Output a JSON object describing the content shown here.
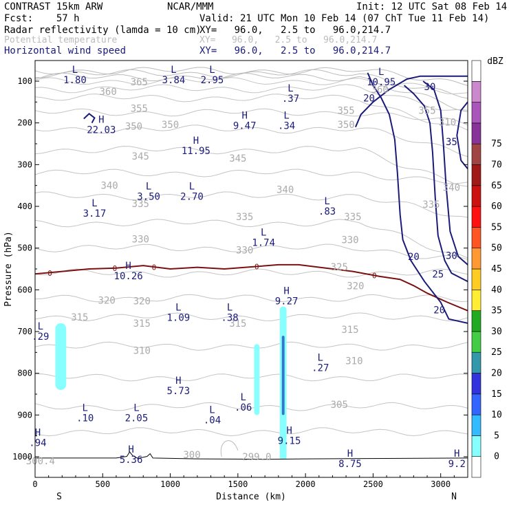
{
  "header": {
    "model": "CONTRAST 15km ARW",
    "org": "NCAR/MMM",
    "init": "Init: 12 UTC Sat 08 Feb 14",
    "fcst": "Fcst:    57 h",
    "valid": "Valid: 21 UTC Mon 10 Feb 14 (07 ChT Tue 11 Feb 14)",
    "fields": [
      {
        "name": "Radar reflectivity (lamda = 10 cm)",
        "xy": "XY=   96.0,   2.5 to   96.0,214.7",
        "color": "#000000"
      },
      {
        "name": "Potential temperature",
        "xy": "XY=   96.0,   2.5 to   96.0,214.7",
        "color": "#bbbbbb"
      },
      {
        "name": "Horizontal wind speed",
        "xy": "XY=   96.0,   2.5 to   96.0,214.7",
        "color": "#1a1a7a"
      }
    ]
  },
  "chart_data": {
    "type": "cross-section contour",
    "xlabel": "Distance (km)",
    "ylabel": "Pressure (hPa)",
    "xlim": [
      0,
      3200
    ],
    "ylim": [
      1050,
      55
    ],
    "xticks": [
      "0",
      "500",
      "1000",
      "1500",
      "2000",
      "2500",
      "3000"
    ],
    "yticks": [
      "100",
      "200",
      "300",
      "400",
      "500",
      "600",
      "700",
      "800",
      "900",
      "1000"
    ],
    "left_label": "S",
    "right_label": "N",
    "colorbar": {
      "title": "dBZ",
      "levels": [
        "0",
        "5",
        "10",
        "15",
        "20",
        "25",
        "30",
        "35",
        "40",
        "45",
        "50",
        "55",
        "60",
        "65",
        "70",
        "75"
      ],
      "colors": [
        "#ffffff",
        "#88ffff",
        "#33bbff",
        "#3366ff",
        "#3333dd",
        "#3399aa",
        "#44cc44",
        "#22aa22",
        "#ffee33",
        "#ffcc22",
        "#ff9933",
        "#ff5522",
        "#ff1111",
        "#cc1111",
        "#a01a1a",
        "#a04444",
        "#883399",
        "#aa55bb",
        "#cc88cc",
        "#ffffff"
      ]
    },
    "theta_labels": [
      {
        "text": "365",
        "x": 770,
        "p": 102
      },
      {
        "text": "360",
        "x": 540,
        "p": 125
      },
      {
        "text": "360",
        "x": 2550,
        "p": 120
      },
      {
        "text": "355",
        "x": 770,
        "p": 165
      },
      {
        "text": "355",
        "x": 2300,
        "p": 170
      },
      {
        "text": "355",
        "x": 2900,
        "p": 170
      },
      {
        "text": "350",
        "x": 730,
        "p": 208
      },
      {
        "text": "350",
        "x": 1000,
        "p": 204
      },
      {
        "text": "350",
        "x": 2300,
        "p": 204
      },
      {
        "text": "310",
        "x": 3050,
        "p": 198
      },
      {
        "text": "345",
        "x": 780,
        "p": 280
      },
      {
        "text": "345",
        "x": 1500,
        "p": 285
      },
      {
        "text": "340",
        "x": 550,
        "p": 350
      },
      {
        "text": "340",
        "x": 1850,
        "p": 360
      },
      {
        "text": "340",
        "x": 3080,
        "p": 355
      },
      {
        "text": "335",
        "x": 780,
        "p": 393
      },
      {
        "text": "335",
        "x": 1550,
        "p": 425
      },
      {
        "text": "335",
        "x": 2350,
        "p": 425
      },
      {
        "text": "335",
        "x": 2930,
        "p": 395
      },
      {
        "text": "330",
        "x": 780,
        "p": 478
      },
      {
        "text": "330",
        "x": 1550,
        "p": 505
      },
      {
        "text": "330",
        "x": 2330,
        "p": 480
      },
      {
        "text": "325",
        "x": 2250,
        "p": 545
      },
      {
        "text": "320",
        "x": 530,
        "p": 625
      },
      {
        "text": "320",
        "x": 790,
        "p": 627
      },
      {
        "text": "320",
        "x": 2370,
        "p": 590
      },
      {
        "text": "315",
        "x": 330,
        "p": 665
      },
      {
        "text": "315",
        "x": 790,
        "p": 680
      },
      {
        "text": "315",
        "x": 1500,
        "p": 680
      },
      {
        "text": "315",
        "x": 2330,
        "p": 695
      },
      {
        "text": "310",
        "x": 790,
        "p": 745
      },
      {
        "text": "310",
        "x": 2360,
        "p": 770
      },
      {
        "text": "305",
        "x": 2250,
        "p": 875
      },
      {
        "text": "300",
        "x": 1160,
        "p": 995
      },
      {
        "text": "299.0",
        "x": 1640,
        "p": 1000
      },
      {
        "text": "300.4",
        "x": 40,
        "p": 1010
      }
    ],
    "extrema": [
      {
        "type": "L",
        "value": "1.80",
        "x": 295,
        "p": 80
      },
      {
        "type": "L",
        "value": "3.84",
        "x": 1025,
        "p": 80
      },
      {
        "type": "L",
        "value": "2.95",
        "x": 1310,
        "p": 80
      },
      {
        "type": "L",
        "value": "10.95",
        "x": 2560,
        "p": 85
      },
      {
        "type": "L",
        "value": ".37",
        "x": 1890,
        "p": 125
      },
      {
        "type": "H",
        "value": "9.47",
        "x": 1550,
        "p": 190
      },
      {
        "type": "L",
        "value": ".34",
        "x": 1860,
        "p": 190
      },
      {
        "type": "H",
        "value": "22.03",
        "x": 490,
        "p": 200
      },
      {
        "type": "H",
        "value": "11.95",
        "x": 1190,
        "p": 250
      },
      {
        "type": "L",
        "value": "3.50",
        "x": 840,
        "p": 360
      },
      {
        "type": "L",
        "value": "2.70",
        "x": 1160,
        "p": 360
      },
      {
        "type": "L",
        "value": "3.17",
        "x": 440,
        "p": 400
      },
      {
        "type": "L",
        "value": ".83",
        "x": 2160,
        "p": 395
      },
      {
        "type": "L",
        "value": "1.74",
        "x": 1690,
        "p": 470
      },
      {
        "type": "H",
        "value": "10.26",
        "x": 690,
        "p": 550
      },
      {
        "type": "H",
        "value": "9.27",
        "x": 1860,
        "p": 610
      },
      {
        "type": "L",
        "value": "1.09",
        "x": 1060,
        "p": 650
      },
      {
        "type": "L",
        "value": ".38",
        "x": 1440,
        "p": 650
      },
      {
        "type": "L",
        "value": ".29",
        "x": 40,
        "p": 695
      },
      {
        "type": "L",
        "value": ".27",
        "x": 2110,
        "p": 770
      },
      {
        "type": "H",
        "value": "5.73",
        "x": 1060,
        "p": 825
      },
      {
        "type": "L",
        "value": ".06",
        "x": 1540,
        "p": 865
      },
      {
        "type": "L",
        "value": ".10",
        "x": 370,
        "p": 890
      },
      {
        "type": "L",
        "value": "2.05",
        "x": 750,
        "p": 890
      },
      {
        "type": "L",
        "value": ".04",
        "x": 1310,
        "p": 895
      },
      {
        "type": "H",
        "value": ".94",
        "x": 20,
        "p": 950
      },
      {
        "type": "H",
        "value": "9.15",
        "x": 1880,
        "p": 945
      },
      {
        "type": "H",
        "value": "5.36",
        "x": 710,
        "p": 990
      },
      {
        "type": "H",
        "value": "8.75",
        "x": 2330,
        "p": 1000
      },
      {
        "type": "H",
        "value": "9.2",
        "x": 3120,
        "p": 1000
      }
    ],
    "wind_labels": [
      {
        "text": "30",
        "x": 2920,
        "p": 113
      },
      {
        "text": "20",
        "x": 2470,
        "p": 140
      },
      {
        "text": "35",
        "x": 3080,
        "p": 245
      },
      {
        "text": "30",
        "x": 3080,
        "p": 518
      },
      {
        "text": "20",
        "x": 2800,
        "p": 520
      },
      {
        "text": "25",
        "x": 2980,
        "p": 562
      },
      {
        "text": "20",
        "x": 2990,
        "p": 648
      }
    ],
    "zero_labels": [
      {
        "text": "0",
        "x": 110,
        "p": 560
      },
      {
        "text": "0",
        "x": 590,
        "p": 548
      },
      {
        "text": "0",
        "x": 880,
        "p": 546
      },
      {
        "text": "0",
        "x": 1640,
        "p": 544
      },
      {
        "text": "0",
        "x": 2510,
        "p": 566
      }
    ],
    "zero_isotherm": [
      [
        0,
        562
      ],
      [
        200,
        556
      ],
      [
        400,
        550
      ],
      [
        600,
        548
      ],
      [
        800,
        542
      ],
      [
        1000,
        550
      ],
      [
        1200,
        546
      ],
      [
        1400,
        550
      ],
      [
        1600,
        545
      ],
      [
        1800,
        540
      ],
      [
        1950,
        540
      ],
      [
        2150,
        548
      ],
      [
        2350,
        556
      ],
      [
        2550,
        568
      ],
      [
        2700,
        575
      ],
      [
        2800,
        590
      ],
      [
        2900,
        608
      ],
      [
        3050,
        630
      ],
      [
        3200,
        650
      ]
    ],
    "wind_contours": [
      {
        "level": 20,
        "points": [
          [
            2370,
            210
          ],
          [
            2410,
            180
          ],
          [
            2500,
            150
          ],
          [
            2620,
            120
          ],
          [
            2750,
            95
          ],
          [
            2850,
            88
          ],
          [
            3200,
            88
          ]
        ]
      },
      {
        "level": 20,
        "points": [
          [
            2460,
            80
          ],
          [
            2500,
            110
          ],
          [
            2560,
            140
          ],
          [
            2620,
            180
          ],
          [
            2660,
            240
          ],
          [
            2680,
            320
          ],
          [
            2700,
            420
          ],
          [
            2720,
            480
          ],
          [
            2780,
            530
          ],
          [
            2880,
            580
          ],
          [
            3000,
            630
          ],
          [
            3060,
            670
          ],
          [
            3200,
            680
          ]
        ]
      },
      {
        "level": 25,
        "points": [
          [
            2730,
            110
          ],
          [
            2800,
            130
          ],
          [
            2880,
            160
          ],
          [
            2920,
            200
          ],
          [
            2940,
            270
          ],
          [
            2960,
            380
          ],
          [
            2980,
            470
          ],
          [
            3030,
            530
          ],
          [
            3080,
            560
          ],
          [
            3200,
            580
          ]
        ]
      },
      {
        "level": 30,
        "points": [
          [
            2870,
            100
          ],
          [
            2950,
            120
          ],
          [
            3000,
            170
          ],
          [
            3020,
            250
          ],
          [
            3040,
            350
          ],
          [
            3070,
            460
          ],
          [
            3130,
            520
          ],
          [
            3200,
            540
          ]
        ]
      },
      {
        "level": 35,
        "points": [
          [
            3200,
            150
          ],
          [
            3150,
            170
          ],
          [
            3120,
            230
          ],
          [
            3150,
            290
          ],
          [
            3200,
            310
          ]
        ]
      },
      {
        "level": 20,
        "points": [
          [
            360,
            190
          ],
          [
            400,
            178
          ],
          [
            440,
            188
          ],
          [
            420,
            200
          ]
        ]
      }
    ],
    "reflectivity_cells": [
      {
        "x0": 150,
        "x1": 230,
        "p0": 680,
        "p1": 840,
        "dbz": 5
      },
      {
        "x0": 1620,
        "x1": 1660,
        "p0": 730,
        "p1": 900,
        "dbz": 5
      },
      {
        "x0": 1810,
        "x1": 1860,
        "p0": 640,
        "p1": 1010,
        "dbz": 5
      },
      {
        "x0": 1825,
        "x1": 1845,
        "p0": 710,
        "p1": 900,
        "dbz": 15
      }
    ]
  }
}
